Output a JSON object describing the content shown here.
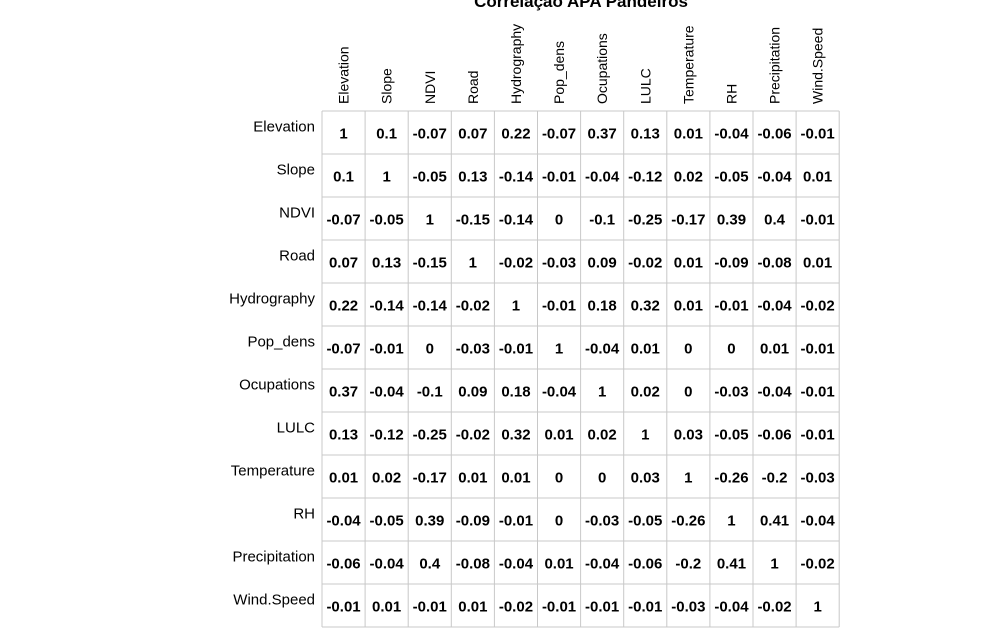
{
  "chart_data": {
    "type": "table",
    "title": "Correlação APA Pandeiros",
    "variables": [
      "Elevation",
      "Slope",
      "NDVI",
      "Road",
      "Hydrography",
      "Pop_dens",
      "Ocupations",
      "LULC",
      "Temperature",
      "RH",
      "Precipitation",
      "Wind.Speed"
    ],
    "values": [
      [
        "1",
        "0.1",
        "-0.07",
        "0.07",
        "0.22",
        "-0.07",
        "0.37",
        "0.13",
        "0.01",
        "-0.04",
        "-0.06",
        "-0.01"
      ],
      [
        "0.1",
        "1",
        "-0.05",
        "0.13",
        "-0.14",
        "-0.01",
        "-0.04",
        "-0.12",
        "0.02",
        "-0.05",
        "-0.04",
        "0.01"
      ],
      [
        "-0.07",
        "-0.05",
        "1",
        "-0.15",
        "-0.14",
        "0",
        "-0.1",
        "-0.25",
        "-0.17",
        "0.39",
        "0.4",
        "-0.01"
      ],
      [
        "0.07",
        "0.13",
        "-0.15",
        "1",
        "-0.02",
        "-0.03",
        "0.09",
        "-0.02",
        "0.01",
        "-0.09",
        "-0.08",
        "0.01"
      ],
      [
        "0.22",
        "-0.14",
        "-0.14",
        "-0.02",
        "1",
        "-0.01",
        "0.18",
        "0.32",
        "0.01",
        "-0.01",
        "-0.04",
        "-0.02"
      ],
      [
        "-0.07",
        "-0.01",
        "0",
        "-0.03",
        "-0.01",
        "1",
        "-0.04",
        "0.01",
        "0",
        "0",
        "0.01",
        "-0.01"
      ],
      [
        "0.37",
        "-0.04",
        "-0.1",
        "0.09",
        "0.18",
        "-0.04",
        "1",
        "0.02",
        "0",
        "-0.03",
        "-0.04",
        "-0.01"
      ],
      [
        "0.13",
        "-0.12",
        "-0.25",
        "-0.02",
        "0.32",
        "0.01",
        "0.02",
        "1",
        "0.03",
        "-0.05",
        "-0.06",
        "-0.01"
      ],
      [
        "0.01",
        "0.02",
        "-0.17",
        "0.01",
        "0.01",
        "0",
        "0",
        "0.03",
        "1",
        "-0.26",
        "-0.2",
        "-0.03"
      ],
      [
        "-0.04",
        "-0.05",
        "0.39",
        "-0.09",
        "-0.01",
        "0",
        "-0.03",
        "-0.05",
        "-0.26",
        "1",
        "0.41",
        "-0.04"
      ],
      [
        "-0.06",
        "-0.04",
        "0.4",
        "-0.08",
        "-0.04",
        "0.01",
        "-0.04",
        "-0.06",
        "-0.2",
        "0.41",
        "1",
        "-0.02"
      ],
      [
        "-0.01",
        "0.01",
        "-0.01",
        "0.01",
        "-0.02",
        "-0.01",
        "-0.01",
        "-0.01",
        "-0.03",
        "-0.04",
        "-0.02",
        "1"
      ]
    ],
    "grid": true,
    "colors": {
      "grid": "#c8c8c8",
      "text": "#000000",
      "background": "#ffffff"
    }
  }
}
